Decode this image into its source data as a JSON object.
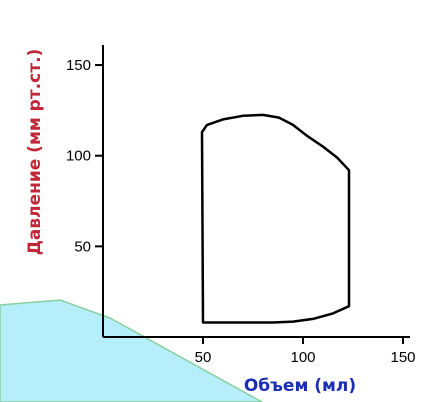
{
  "chart_data": {
    "type": "line",
    "title": "",
    "xlabel": "Объем (мл)",
    "ylabel": "Давление (мм рт.ст.)",
    "xlim": [
      0,
      150
    ],
    "ylim": [
      0,
      150
    ],
    "xticks": [
      50,
      100,
      150
    ],
    "yticks": [
      50,
      100,
      150
    ],
    "grid": false,
    "series": [
      {
        "x": [
          50,
          49.5,
          52,
          60,
          70,
          80,
          88,
          95,
          102,
          110,
          117,
          123,
          123,
          123,
          115,
          105,
          95,
          85,
          75,
          65,
          55,
          50,
          50
        ],
        "y": [
          8,
          113,
          117,
          120,
          122,
          122.5,
          121,
          117,
          111,
          105,
          99,
          92,
          60,
          17,
          13,
          10,
          8.5,
          8,
          8,
          8,
          8,
          8,
          8
        ]
      }
    ]
  },
  "colors": {
    "ylabel": "#c0283a",
    "xlabel": "#1c2fb3",
    "decor_fill": "#b7eefb",
    "decor_stroke": "#87d19f"
  }
}
